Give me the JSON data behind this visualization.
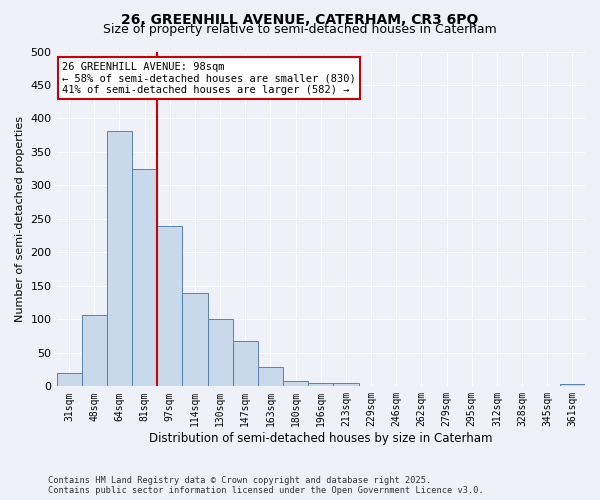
{
  "title_line1": "26, GREENHILL AVENUE, CATERHAM, CR3 6PQ",
  "title_line2": "Size of property relative to semi-detached houses in Caterham",
  "xlabel": "Distribution of semi-detached houses by size in Caterham",
  "ylabel": "Number of semi-detached properties",
  "categories": [
    "31sqm",
    "48sqm",
    "64sqm",
    "81sqm",
    "97sqm",
    "114sqm",
    "130sqm",
    "147sqm",
    "163sqm",
    "180sqm",
    "196sqm",
    "213sqm",
    "229sqm",
    "246sqm",
    "262sqm",
    "279sqm",
    "295sqm",
    "312sqm",
    "328sqm",
    "345sqm",
    "361sqm"
  ],
  "values": [
    20,
    107,
    382,
    325,
    240,
    140,
    101,
    68,
    29,
    8,
    5,
    5,
    0,
    0,
    0,
    0,
    0,
    0,
    0,
    0,
    4
  ],
  "bar_color": "#c9d9ec",
  "bar_edge_color": "#5580b0",
  "red_line_index": 4,
  "annotation_title": "26 GREENHILL AVENUE: 98sqm",
  "annotation_line2": "← 58% of semi-detached houses are smaller (830)",
  "annotation_line3": "41% of semi-detached houses are larger (582) →",
  "annotation_box_color": "#ffffff",
  "annotation_box_edge": "#cc0000",
  "red_line_color": "#cc0000",
  "footer_line1": "Contains HM Land Registry data © Crown copyright and database right 2025.",
  "footer_line2": "Contains public sector information licensed under the Open Government Licence v3.0.",
  "ylim": [
    0,
    500
  ],
  "yticks": [
    0,
    50,
    100,
    150,
    200,
    250,
    300,
    350,
    400,
    450,
    500
  ],
  "background_color": "#eef2f8",
  "grid_color": "#ffffff",
  "title_fontsize": 10,
  "subtitle_fontsize": 9
}
